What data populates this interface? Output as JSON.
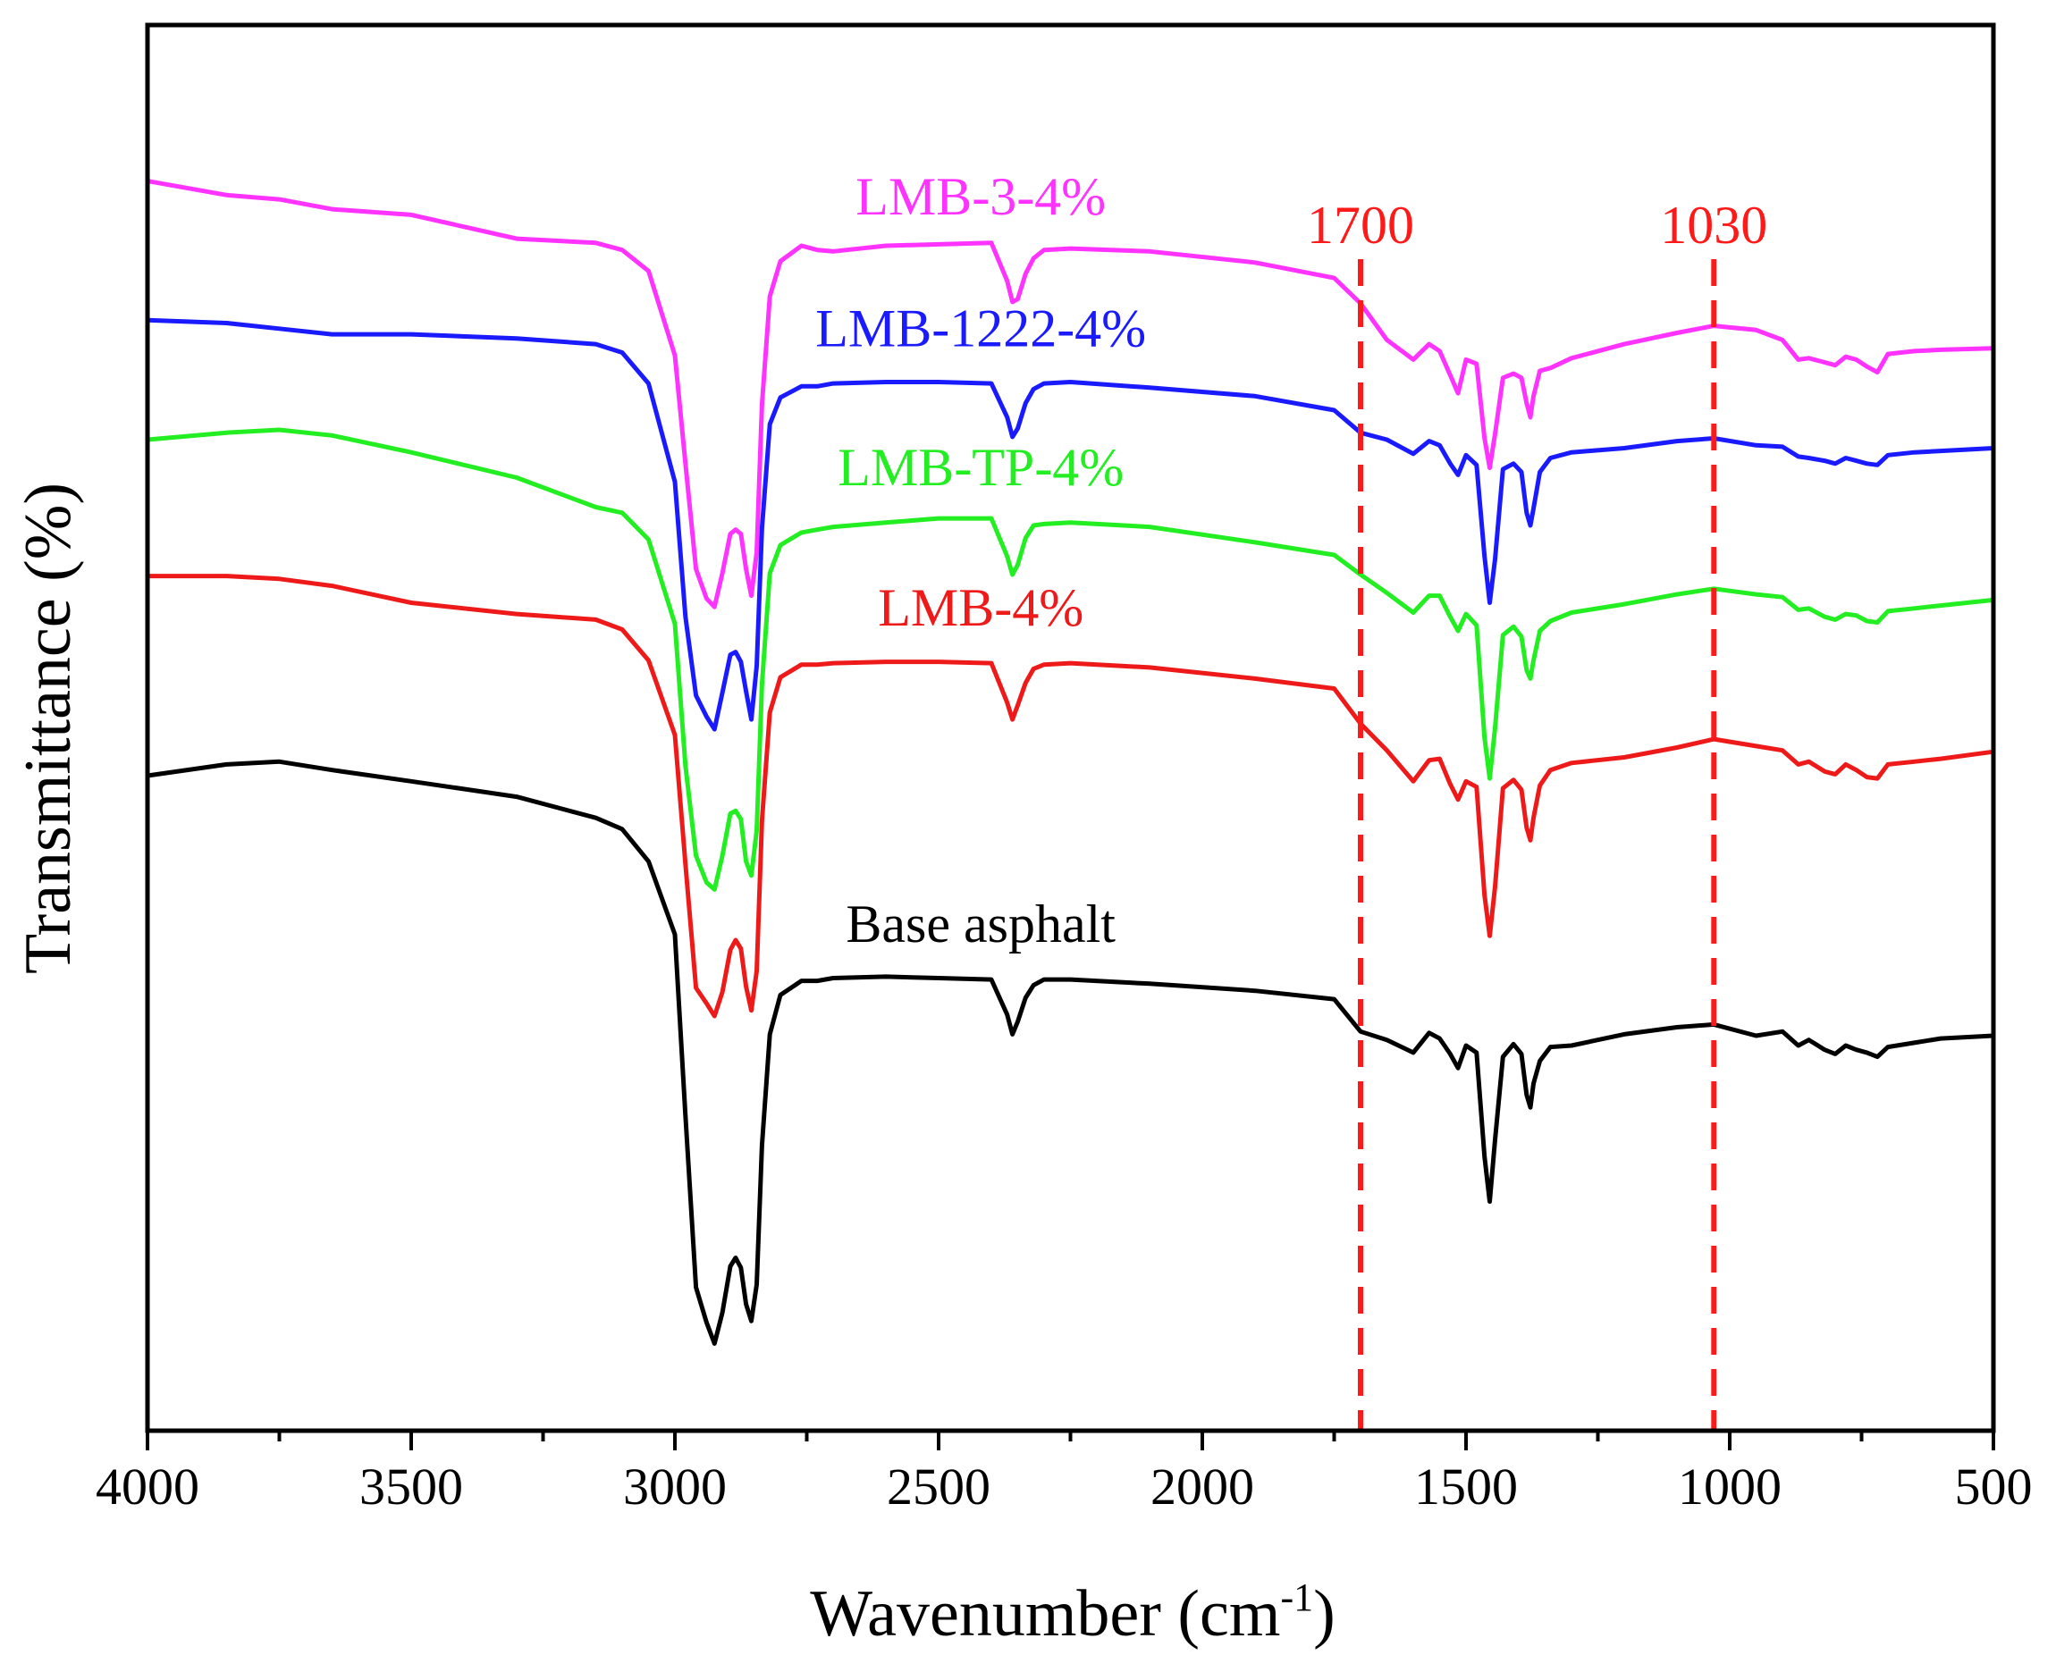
{
  "chart_data": {
    "type": "line",
    "title": "",
    "xlabel": "Wavenumber (cm",
    "xlabel_sup": "-1",
    "xlabel_close": ")",
    "ylabel": "Transmittance (%)",
    "xlim": [
      4000,
      500
    ],
    "x_inverted": true,
    "ylim": [
      0,
      100
    ],
    "y_ticks_shown": false,
    "x_ticks": [
      4000,
      3500,
      3000,
      2500,
      2000,
      1500,
      1000,
      500
    ],
    "x_tick_labels": [
      "4000",
      "3500",
      "3000",
      "2500",
      "2000",
      "1500",
      "1000",
      "500"
    ],
    "vertical_markers": [
      {
        "x": 1700,
        "label": "1700",
        "color": "#ff1a1a"
      },
      {
        "x": 1030,
        "label": "1030",
        "color": "#ff1a1a"
      }
    ],
    "x": [
      4000,
      3850,
      3750,
      3650,
      3500,
      3300,
      3150,
      3100,
      3050,
      3000,
      2980,
      2960,
      2940,
      2925,
      2910,
      2895,
      2885,
      2875,
      2865,
      2855,
      2845,
      2835,
      2820,
      2800,
      2760,
      2730,
      2700,
      2600,
      2500,
      2400,
      2370,
      2360,
      2350,
      2335,
      2320,
      2300,
      2250,
      2100,
      1900,
      1750,
      1700,
      1650,
      1600,
      1570,
      1550,
      1530,
      1515,
      1500,
      1480,
      1465,
      1455,
      1445,
      1430,
      1410,
      1395,
      1385,
      1378,
      1372,
      1360,
      1340,
      1300,
      1200,
      1100,
      1030,
      950,
      900,
      870,
      850,
      820,
      800,
      780,
      760,
      740,
      720,
      700,
      650,
      600,
      500
    ],
    "series": [
      {
        "name": "LMB-3-4%",
        "color": "#ff33ff",
        "values": [
          88.9,
          87.9,
          87.6,
          86.9,
          86.5,
          84.8,
          84.5,
          84.0,
          82.5,
          76.5,
          68.8,
          61.3,
          59.2,
          58.6,
          61.0,
          63.8,
          64.1,
          63.8,
          61.3,
          59.4,
          62.5,
          73.0,
          80.7,
          83.2,
          84.3,
          84.0,
          83.9,
          84.3,
          84.4,
          84.5,
          81.8,
          80.3,
          80.5,
          82.3,
          83.4,
          84.0,
          84.1,
          83.9,
          83.1,
          82.0,
          80.2,
          77.6,
          76.2,
          77.3,
          76.8,
          75.1,
          73.8,
          76.2,
          75.9,
          70.6,
          68.5,
          70.9,
          74.9,
          75.2,
          74.9,
          73.1,
          72.1,
          73.6,
          75.4,
          75.6,
          76.3,
          77.3,
          78.1,
          78.6,
          78.3,
          77.6,
          76.2,
          76.3,
          76.0,
          75.8,
          76.4,
          76.2,
          75.7,
          75.3,
          76.6,
          76.8,
          76.9,
          77.0
        ]
      },
      {
        "name": "LMB-1222-4%",
        "color": "#1a1aff",
        "values": [
          79.0,
          78.8,
          78.4,
          78.0,
          78.0,
          77.7,
          77.3,
          76.7,
          74.5,
          67.5,
          57.9,
          52.3,
          50.8,
          49.9,
          52.5,
          55.2,
          55.4,
          54.7,
          52.6,
          50.6,
          54.4,
          64.2,
          71.6,
          73.5,
          74.3,
          74.3,
          74.5,
          74.6,
          74.6,
          74.5,
          72.1,
          70.7,
          71.3,
          73.1,
          74.1,
          74.5,
          74.6,
          74.2,
          73.6,
          72.6,
          71.0,
          70.5,
          69.5,
          70.4,
          70.1,
          68.8,
          68.0,
          69.4,
          68.7,
          62.2,
          58.9,
          62.0,
          68.4,
          68.8,
          68.2,
          65.3,
          64.4,
          65.6,
          68.2,
          69.2,
          69.6,
          69.9,
          70.4,
          70.6,
          70.1,
          70.0,
          69.3,
          69.2,
          69.0,
          68.8,
          69.2,
          69.0,
          68.8,
          68.7,
          69.4,
          69.6,
          69.7,
          69.9
        ]
      },
      {
        "name": "LMB-TP-4%",
        "color": "#22ee22",
        "values": [
          70.5,
          71.0,
          71.2,
          70.8,
          69.6,
          67.8,
          65.7,
          65.3,
          63.4,
          57.4,
          47.3,
          40.9,
          39.0,
          38.5,
          40.9,
          43.9,
          44.1,
          43.5,
          40.5,
          39.5,
          42.7,
          53.1,
          61.0,
          63.0,
          63.9,
          64.1,
          64.3,
          64.6,
          64.9,
          64.9,
          62.2,
          60.9,
          61.6,
          63.5,
          64.4,
          64.5,
          64.6,
          64.3,
          63.2,
          62.3,
          60.9,
          59.6,
          58.2,
          59.4,
          59.4,
          57.9,
          56.9,
          58.1,
          57.3,
          49.3,
          46.4,
          50.0,
          56.6,
          57.2,
          56.5,
          54.1,
          53.5,
          54.8,
          56.9,
          57.6,
          58.2,
          58.8,
          59.5,
          59.9,
          59.5,
          59.3,
          58.4,
          58.5,
          57.9,
          57.7,
          58.1,
          58.0,
          57.6,
          57.5,
          58.3,
          58.5,
          58.7,
          59.1
        ]
      },
      {
        "name": "LMB-4%",
        "color": "#ee1a1a",
        "values": [
          60.8,
          60.8,
          60.6,
          60.1,
          58.9,
          58.1,
          57.7,
          57.0,
          54.8,
          49.5,
          40.3,
          31.5,
          30.4,
          29.5,
          31.2,
          34.2,
          34.9,
          34.3,
          31.6,
          29.9,
          32.7,
          43.4,
          51.1,
          53.6,
          54.5,
          54.5,
          54.6,
          54.7,
          54.7,
          54.6,
          51.8,
          50.6,
          51.6,
          53.2,
          54.2,
          54.5,
          54.6,
          54.3,
          53.5,
          52.8,
          50.3,
          48.4,
          46.2,
          47.7,
          47.8,
          46.0,
          44.9,
          46.2,
          45.8,
          38.1,
          35.2,
          38.7,
          45.7,
          46.3,
          45.6,
          42.9,
          42.0,
          43.6,
          45.9,
          47.0,
          47.5,
          47.9,
          48.6,
          49.2,
          48.7,
          48.4,
          47.4,
          47.6,
          46.9,
          46.7,
          47.4,
          47.0,
          46.5,
          46.4,
          47.4,
          47.6,
          47.8,
          48.3
        ]
      },
      {
        "name": "Base asphalt",
        "color": "#000000",
        "values": [
          46.6,
          47.4,
          47.6,
          47.0,
          46.2,
          45.1,
          43.6,
          42.8,
          40.5,
          35.3,
          22.4,
          10.2,
          7.7,
          6.2,
          8.4,
          11.7,
          12.3,
          11.6,
          9.0,
          7.8,
          10.4,
          20.3,
          28.2,
          31.0,
          32.0,
          32.0,
          32.2,
          32.3,
          32.2,
          32.1,
          29.6,
          28.2,
          29.1,
          30.8,
          31.7,
          32.1,
          32.1,
          31.8,
          31.3,
          30.7,
          28.4,
          27.8,
          26.9,
          28.3,
          27.9,
          26.8,
          25.8,
          27.4,
          26.9,
          19.5,
          16.3,
          20.7,
          26.6,
          27.5,
          26.8,
          23.9,
          23.0,
          24.7,
          26.3,
          27.3,
          27.4,
          28.2,
          28.7,
          28.9,
          28.1,
          28.4,
          27.4,
          27.8,
          27.1,
          26.8,
          27.4,
          27.1,
          26.9,
          26.6,
          27.3,
          27.6,
          27.9,
          28.1
        ]
      }
    ]
  }
}
